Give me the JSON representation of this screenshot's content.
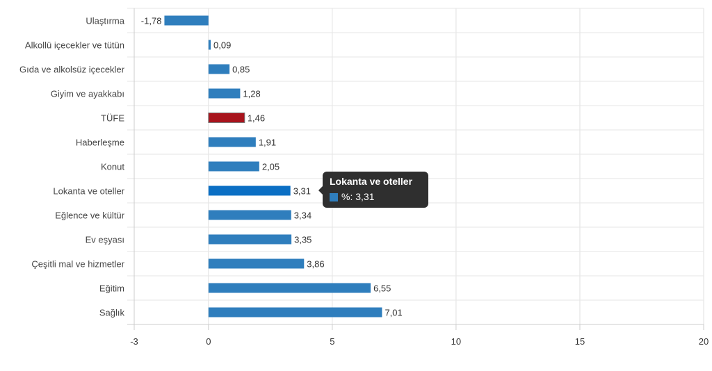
{
  "chart_data": {
    "type": "bar",
    "orientation": "horizontal",
    "categories": [
      "Ulaştırma",
      "Alkollü içecekler ve tütün",
      "Gıda ve alkolsüz içecekler",
      "Giyim ve ayakkabı",
      "TÜFE",
      "Haberleşme",
      "Konut",
      "Lokanta ve oteller",
      "Eğlence ve kültür",
      "Ev eşyası",
      "Çeşitli mal ve hizmetler",
      "Eğitim",
      "Sağlık"
    ],
    "values": [
      -1.78,
      0.09,
      0.85,
      1.28,
      1.46,
      1.91,
      2.05,
      3.31,
      3.34,
      3.35,
      3.86,
      6.55,
      7.01
    ],
    "data_labels": [
      "-1,78",
      "0,09",
      "0,85",
      "1,28",
      "1,46",
      "1,91",
      "2,05",
      "3,31",
      "3,34",
      "3,35",
      "3,86",
      "6,55",
      "7,01"
    ],
    "series_name": "%",
    "xlim": [
      -3,
      20
    ],
    "x_ticks": [
      -3,
      0,
      5,
      10,
      15,
      20
    ],
    "x_tick_labels": [
      "-3",
      "0",
      "5",
      "10",
      "15",
      "20"
    ],
    "grid": true,
    "colors": {
      "bar": "#2f7ebd",
      "highlight": "#a8141d",
      "hover": "#0b6fc4"
    },
    "highlight_category": "TÜFE",
    "hover_category": "Lokanta ve oteller"
  },
  "tooltip": {
    "title": "Lokanta ve oteller",
    "label": "%: 3,31"
  }
}
